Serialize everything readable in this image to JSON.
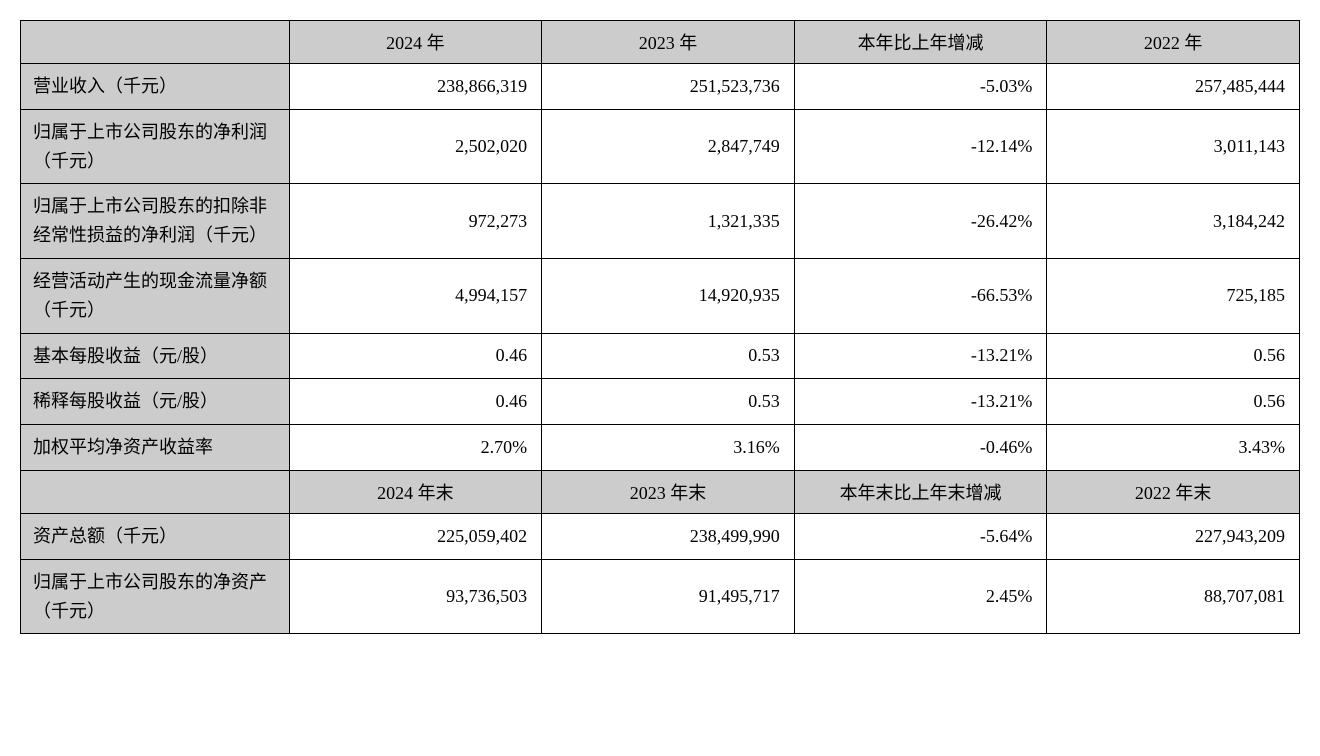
{
  "table": {
    "type": "table",
    "background_color": "#ffffff",
    "header_bg_color": "#cccccc",
    "border_color": "#000000",
    "font_family": "SimSun",
    "header_fontsize": 18,
    "cell_fontsize": 18,
    "columns": {
      "label_width_pct": 21,
      "data_width_pct": 19.75
    },
    "header1": {
      "blank": "",
      "col1": "2024 年",
      "col2": "2023 年",
      "col3": "本年比上年增减",
      "col4": "2022 年"
    },
    "rows1": [
      {
        "label": "营业收入（千元）",
        "c1": "238,866,319",
        "c2": "251,523,736",
        "c3": "-5.03%",
        "c4": "257,485,444"
      },
      {
        "label": "归属于上市公司股东的净利润（千元）",
        "c1": "2,502,020",
        "c2": "2,847,749",
        "c3": "-12.14%",
        "c4": "3,011,143"
      },
      {
        "label": "归属于上市公司股东的扣除非经常性损益的净利润（千元）",
        "c1": "972,273",
        "c2": "1,321,335",
        "c3": "-26.42%",
        "c4": "3,184,242"
      },
      {
        "label": "经营活动产生的现金流量净额（千元）",
        "c1": "4,994,157",
        "c2": "14,920,935",
        "c3": "-66.53%",
        "c4": "725,185"
      },
      {
        "label": "基本每股收益（元/股）",
        "c1": "0.46",
        "c2": "0.53",
        "c3": "-13.21%",
        "c4": "0.56"
      },
      {
        "label": "稀释每股收益（元/股）",
        "c1": "0.46",
        "c2": "0.53",
        "c3": "-13.21%",
        "c4": "0.56"
      },
      {
        "label": "加权平均净资产收益率",
        "c1": "2.70%",
        "c2": "3.16%",
        "c3": "-0.46%",
        "c4": "3.43%"
      }
    ],
    "header2": {
      "blank": "",
      "col1": "2024 年末",
      "col2": "2023 年末",
      "col3": "本年末比上年末增减",
      "col4": "2022 年末"
    },
    "rows2": [
      {
        "label": "资产总额（千元）",
        "c1": "225,059,402",
        "c2": "238,499,990",
        "c3": "-5.64%",
        "c4": "227,943,209"
      },
      {
        "label": "归属于上市公司股东的净资产（千元）",
        "c1": "93,736,503",
        "c2": "91,495,717",
        "c3": "2.45%",
        "c4": "88,707,081"
      }
    ]
  }
}
